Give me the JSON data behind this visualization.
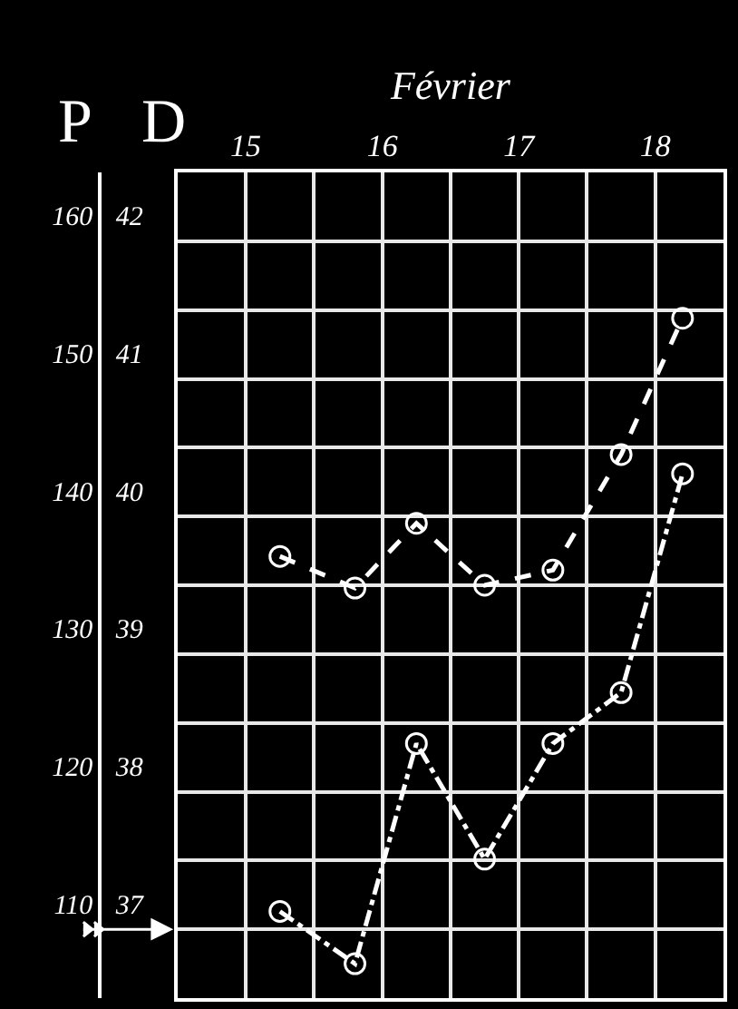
{
  "chart_data": {
    "type": "line",
    "xlabel": "Février",
    "ylabel": "D",
    "y2label": "P",
    "x": [
      15.75,
      16.3,
      16.75,
      17.25,
      17.75,
      18.25,
      18.7
    ],
    "series": [
      {
        "color": "#ffffff",
        "line_style": "dashed",
        "values": [
          39.71,
          39.48,
          39.95,
          39.5,
          39.61,
          40.45,
          41.44
        ]
      },
      {
        "color": "#ffffff",
        "line_style": "dashdot",
        "values": [
          37.13,
          36.75,
          38.35,
          37.51,
          38.35,
          38.72,
          40.31
        ]
      }
    ],
    "marker": "circle",
    "grid": true,
    "xlim": [
      15,
      19
    ],
    "xticks": [
      {
        "value": 15,
        "label": null
      },
      {
        "value": 15.5,
        "label": "15"
      },
      {
        "value": 16,
        "label": null
      },
      {
        "value": 16.5,
        "label": "16"
      },
      {
        "value": 17,
        "label": null
      },
      {
        "value": 17.5,
        "label": "17"
      },
      {
        "value": 18,
        "label": null
      },
      {
        "value": 18.5,
        "label": "18"
      },
      {
        "value": 19,
        "label": null
      }
    ],
    "ylim": [
      36.5,
      42.5
    ],
    "yticks": [
      37,
      {
        "value": 37.5,
        "label": null
      },
      38,
      {
        "value": 38.5,
        "label": null
      },
      39,
      {
        "value": 39.5,
        "label": null
      },
      40,
      {
        "value": 40.5,
        "label": null
      },
      41,
      {
        "value": 41.5,
        "label": null
      },
      42
    ],
    "y2lim": [
      105,
      165
    ],
    "y2ticks": [
      110,
      120,
      130,
      140,
      150,
      160
    ]
  }
}
